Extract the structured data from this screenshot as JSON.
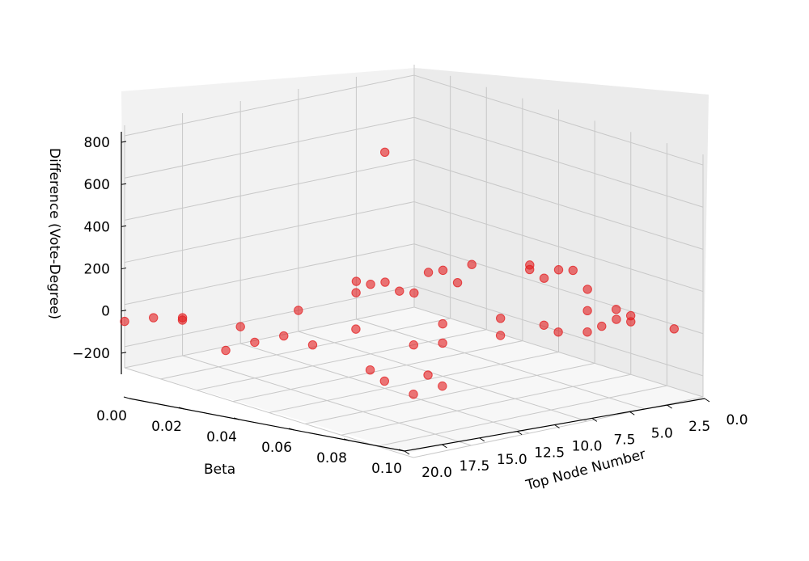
{
  "chart_data": {
    "type": "scatter3d",
    "x_label": "Beta",
    "y_label": "Top Node Number",
    "z_label": "Difference (Vote-Degree)",
    "x_ticks": [
      "0.00",
      "0.02",
      "0.04",
      "0.06",
      "0.08",
      "0.10"
    ],
    "y_ticks": [
      "0.0",
      "2.5",
      "5.0",
      "7.5",
      "10.0",
      "12.5",
      "15.0",
      "17.5",
      "20.0"
    ],
    "z_ticks": [
      "−200",
      "0",
      "200",
      "400",
      "600",
      "800"
    ],
    "xlim": [
      0,
      0.1
    ],
    "ylim": [
      0,
      20
    ],
    "zlim": [
      -300,
      850
    ],
    "marker_color": "#e31a1c",
    "points": [
      [
        0.0,
        20,
        -80
      ],
      [
        0.01,
        18,
        -60
      ],
      [
        0.02,
        20,
        -120
      ],
      [
        0.0,
        18,
        -20
      ],
      [
        0.02,
        15,
        -130
      ],
      [
        0.01,
        15,
        -140
      ],
      [
        0.04,
        20,
        -220
      ],
      [
        0.04,
        17,
        -200
      ],
      [
        0.04,
        15,
        -200
      ],
      [
        0.06,
        20,
        -200
      ],
      [
        0.06,
        15,
        30
      ],
      [
        0.05,
        14,
        40
      ],
      [
        0.06,
        13,
        40
      ],
      [
        0.07,
        16,
        -10
      ],
      [
        0.08,
        20,
        -120
      ],
      [
        0.08,
        16,
        -90
      ],
      [
        0.07,
        13,
        100
      ],
      [
        0.08,
        14,
        60
      ],
      [
        0.08,
        12,
        130
      ],
      [
        0.09,
        10,
        120
      ],
      [
        0.1,
        12,
        70
      ],
      [
        0.1,
        10,
        90
      ],
      [
        0.09,
        9,
        100
      ],
      [
        0.1,
        8,
        40
      ],
      [
        0.09,
        7,
        180
      ],
      [
        0.1,
        17,
        -120
      ],
      [
        0.1,
        6,
        -60
      ],
      [
        0.1,
        5,
        -50
      ],
      [
        0.1,
        2,
        -20
      ],
      [
        0.09,
        3,
        50
      ],
      [
        0.09,
        6,
        10
      ],
      [
        0.08,
        4,
        -20
      ],
      [
        0.08,
        2,
        130
      ],
      [
        0.07,
        1,
        100
      ],
      [
        0.06,
        2,
        80
      ],
      [
        0.06,
        6,
        60
      ],
      [
        0.05,
        4,
        50
      ],
      [
        0.05,
        8,
        20
      ],
      [
        0.04,
        6,
        0
      ],
      [
        0.03,
        6,
        20
      ],
      [
        0.03,
        10,
        10
      ],
      [
        0.02,
        3,
        -30
      ],
      [
        0.01,
        5,
        -20
      ],
      [
        0.01,
        0,
        10
      ],
      [
        0.0,
        0,
        0
      ],
      [
        0.0,
        2,
        20
      ],
      [
        0.07,
        5,
        20
      ],
      [
        0.04,
        10,
        820
      ]
    ]
  }
}
